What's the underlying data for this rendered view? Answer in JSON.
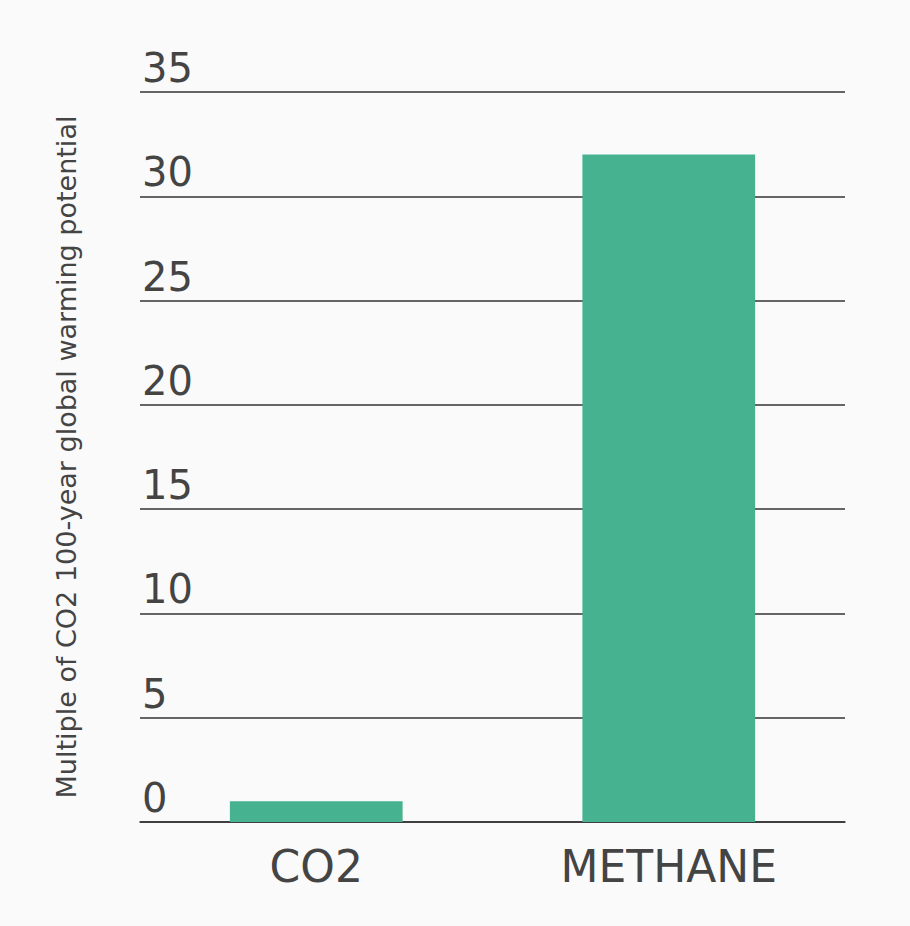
{
  "chart_data": {
    "type": "bar",
    "y_label": "Multiple of CO2 100-year global warming potential",
    "categories": [
      "CO2",
      "METHANE"
    ],
    "values": [
      1,
      32
    ],
    "color": "#47b28f",
    "ylim": [
      0,
      35
    ],
    "yticks": [
      0,
      5,
      10,
      15,
      20,
      25,
      30,
      35
    ],
    "grid": true
  }
}
